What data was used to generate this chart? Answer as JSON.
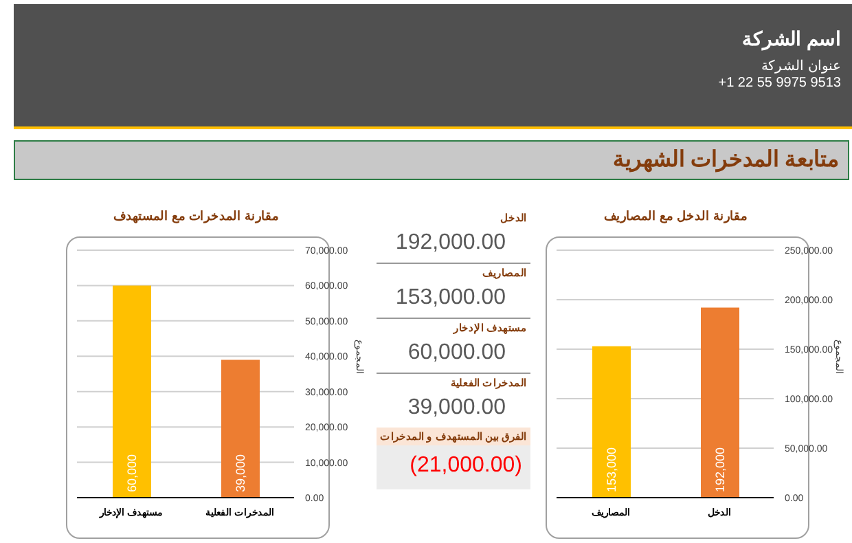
{
  "chart_data": [
    {
      "type": "other",
      "title": "متابعة المدخرات الشهرية",
      "annotations": [
        "اسم الشركة",
        "عنوان الشركة",
        "+1 22 55 9975 9513"
      ]
    },
    {
      "type": "bar",
      "title": "مقارنة الدخل مع المصاريف",
      "ylabel": "المجموع",
      "categories": [
        "المصاريف",
        "الدخل"
      ],
      "values": [
        153000,
        192000
      ],
      "colors": [
        "#ffc000",
        "#ed7d31"
      ],
      "value_labels": [
        "153,000",
        "192,000"
      ],
      "ylim": [
        0,
        250000
      ],
      "yticks": [
        {
          "value": 0,
          "label": "0.00"
        },
        {
          "value": 50000,
          "label": "50,000.00"
        },
        {
          "value": 100000,
          "label": "100,000.00"
        },
        {
          "value": 150000,
          "label": "150,000.00"
        },
        {
          "value": 200000,
          "label": "200,000.00"
        },
        {
          "value": 250000,
          "label": "250,000.00"
        }
      ],
      "grid": "y",
      "legend": false
    },
    {
      "type": "other",
      "annotations": [
        "الدخل",
        "192,000.00",
        "المصاريف",
        "153,000.00",
        "مستهدف الإدخار",
        "60,000.00",
        "المدخرات الفعلية",
        "39,000.00",
        "الفرق بين المستهدف و المدخرات",
        "(21,000.00)"
      ]
    },
    {
      "type": "bar",
      "title": "مقارنة المدخرات مع المستهدف",
      "ylabel": "المجموع",
      "categories": [
        "مستهدف الإدخار",
        "المدخرات الفعلية"
      ],
      "values": [
        60000,
        39000
      ],
      "colors": [
        "#ffc000",
        "#ed7d31"
      ],
      "value_labels": [
        "60,000",
        "39,000"
      ],
      "ylim": [
        0,
        70000
      ],
      "yticks": [
        {
          "value": 0,
          "label": "0.00"
        },
        {
          "value": 10000,
          "label": "10,000.00"
        },
        {
          "value": 20000,
          "label": "20,000.00"
        },
        {
          "value": 30000,
          "label": "30,000.00"
        },
        {
          "value": 40000,
          "label": "40,000.00"
        },
        {
          "value": 50000,
          "label": "50,000.00"
        },
        {
          "value": 60000,
          "label": "60,000.00"
        },
        {
          "value": 70000,
          "label": "70,000.00"
        }
      ],
      "grid": "y",
      "legend": false
    }
  ]
}
